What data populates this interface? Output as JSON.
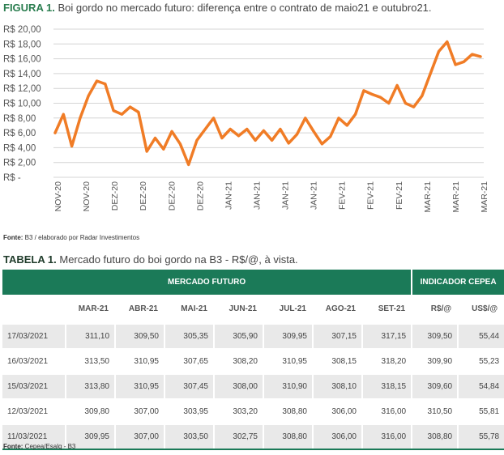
{
  "figure": {
    "label": "FIGURA 1.",
    "title": "Boi gordo no mercado futuro: diferença entre o contrato de maio21 e outubro21.",
    "source_label": "Fonte:",
    "source_text": "B3 / elaborado por Radar Investimentos"
  },
  "chart_data": {
    "type": "line",
    "title": "",
    "xlabel": "",
    "ylabel": "",
    "ylim": [
      0,
      20
    ],
    "y_ticks": [
      "R$ -",
      "R$ 2,00",
      "R$ 4,00",
      "R$ 6,00",
      "R$ 8,00",
      "R$ 10,00",
      "R$ 12,00",
      "R$ 14,00",
      "R$ 16,00",
      "R$ 18,00",
      "R$ 20,00"
    ],
    "x_tick_labels": [
      "NOV-20",
      "NOV-20",
      "DEZ-20",
      "DEZ-20",
      "DEZ-20",
      "DEZ-20",
      "JAN-21",
      "JAN-21",
      "JAN-21",
      "JAN-21",
      "FEV-21",
      "FEV-21",
      "FEV-21",
      "MAR-21",
      "MAR-21",
      "MAR-21"
    ],
    "grid": true,
    "line_color": "#f07c26",
    "series": [
      {
        "values": [
          6.0,
          8.5,
          4.2,
          8.0,
          11.0,
          13.0,
          12.6,
          9.0,
          8.5,
          9.5,
          8.8,
          3.5,
          5.3,
          3.8,
          6.2,
          4.5,
          1.7,
          5.0,
          6.5,
          8.0,
          5.3,
          6.5,
          5.6,
          6.5,
          5.0,
          6.3,
          5.0,
          6.5,
          4.6,
          5.8,
          8.0,
          6.2,
          4.5,
          5.5,
          8.0,
          7.0,
          8.5,
          11.7,
          11.2,
          10.8,
          10.0,
          12.4,
          10.0,
          9.5,
          11.0,
          14.0,
          17.0,
          18.3,
          15.2,
          15.6,
          16.6,
          16.3
        ]
      }
    ]
  },
  "table": {
    "label": "TABELA 1.",
    "title": "Mercado futuro do boi gordo na B3 - R$/@, à vista.",
    "group_headers": [
      "MERCADO FUTURO",
      "INDICADOR CEPEA"
    ],
    "columns": [
      "MAR-21",
      "ABR-21",
      "MAI-21",
      "JUN-21",
      "JUL-21",
      "AGO-21",
      "SET-21",
      "R$/@",
      "US$/@"
    ],
    "rows": [
      [
        "17/03/2021",
        "311,10",
        "309,50",
        "305,35",
        "305,90",
        "309,95",
        "307,15",
        "317,15",
        "309,50",
        "55,44"
      ],
      [
        "16/03/2021",
        "313,50",
        "310,95",
        "307,65",
        "308,20",
        "310,95",
        "308,15",
        "318,20",
        "309,90",
        "55,23"
      ],
      [
        "15/03/2021",
        "313,80",
        "310,95",
        "307,45",
        "308,00",
        "310,90",
        "308,10",
        "318,15",
        "309,60",
        "54,84"
      ],
      [
        "12/03/2021",
        "309,80",
        "307,00",
        "303,95",
        "303,20",
        "308,80",
        "306,00",
        "316,00",
        "310,50",
        "55,81"
      ],
      [
        "11/03/2021",
        "309,95",
        "307,00",
        "303,50",
        "302,75",
        "308,80",
        "306,00",
        "316,00",
        "308,80",
        "55,78"
      ]
    ],
    "source_label": "Fonte:",
    "source_text": "Cepea/Esalq - B3"
  }
}
